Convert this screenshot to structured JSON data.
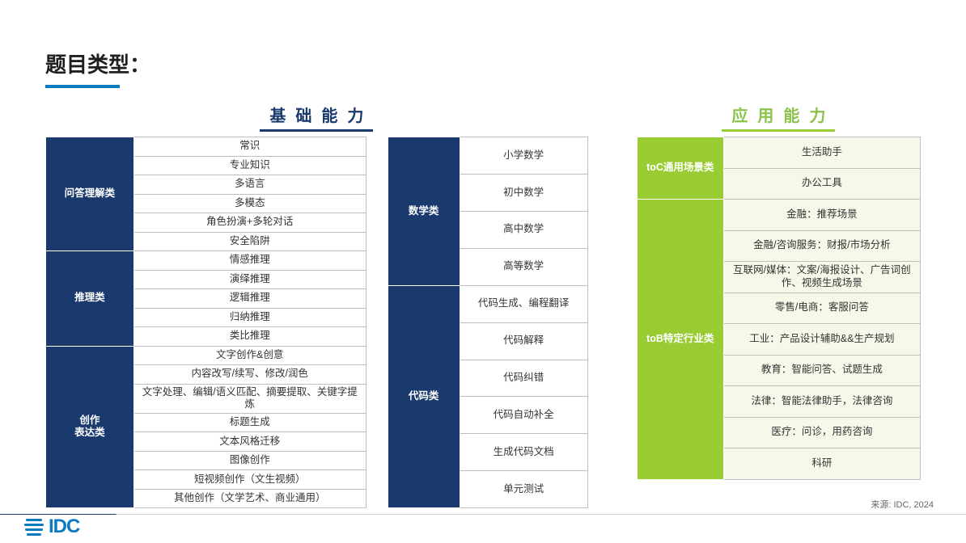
{
  "title": "题目类型：",
  "source": "来源: IDC, 2024",
  "logo": "IDC",
  "colors": {
    "blue_header": "#1a3a6e",
    "green_header": "#99cc33",
    "green_text": "#8bc34a",
    "accent": "#0a7bc1",
    "tint": "#f4f9ea",
    "border": "#bfbfbf"
  },
  "sections": {
    "basic": {
      "title": "基础能力",
      "left": [
        {
          "header": "问答理解类",
          "items": [
            "常识",
            "专业知识",
            "多语言",
            "多模态",
            "角色扮演+多轮对话",
            "安全陷阱"
          ]
        },
        {
          "header": "推理类",
          "items": [
            "情感推理",
            "演绎推理",
            "逻辑推理",
            "归纳推理",
            "类比推理"
          ]
        },
        {
          "header": "创作\n表达类",
          "items": [
            "文字创作&创意",
            "内容改写/续写、修改/润色",
            "文字处理、编辑/语义匹配、摘要提取、关键字提炼",
            "标题生成",
            "文本风格迁移",
            "图像创作",
            "短视频创作（文生视频）",
            "其他创作（文学艺术、商业通用）"
          ]
        }
      ],
      "right": [
        {
          "header": "数学类",
          "items": [
            "小学数学",
            "初中数学",
            "高中数学",
            "高等数学"
          ]
        },
        {
          "header": "代码类",
          "items": [
            "代码生成、编程翻译",
            "代码解释",
            "代码纠错",
            "代码自动补全",
            "生成代码文档",
            "单元测试"
          ]
        }
      ]
    },
    "app": {
      "title": "应用能力",
      "groups": [
        {
          "header": "toC通用场景类",
          "items": [
            "生活助手",
            "办公工具"
          ]
        },
        {
          "header": "toB特定行业类",
          "items": [
            "金融：推荐场景",
            "金融/咨询服务：财报/市场分析",
            "互联网/媒体：文案/海报设计、广告词创作、视频生成场景",
            "零售/电商：客服问答",
            "工业：产品设计辅助&&生产规划",
            "教育：智能问答、试题生成",
            "法律：智能法律助手，法律咨询",
            "医疗：问诊，用药咨询",
            "科研"
          ]
        }
      ]
    }
  }
}
